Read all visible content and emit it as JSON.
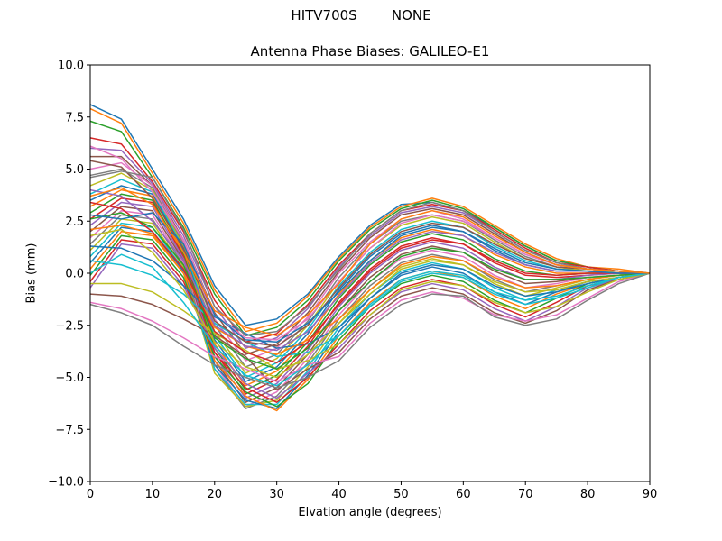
{
  "figure": {
    "suptitle": "HITV700S        NONE"
  },
  "chart_data": {
    "type": "line",
    "title": "Antenna Phase Biases: GALILEO-E1",
    "xlabel": "Elvation angle (degrees)",
    "ylabel": "Bias (mm)",
    "xlim": [
      0,
      90
    ],
    "ylim": [
      -10,
      10
    ],
    "xticks": [
      0,
      10,
      20,
      30,
      40,
      50,
      60,
      70,
      80,
      90
    ],
    "yticks": [
      -10.0,
      -7.5,
      -5.0,
      -2.5,
      0.0,
      2.5,
      5.0,
      7.5,
      10.0
    ],
    "ytick_labels": [
      "−10.0",
      "−7.5",
      "−5.0",
      "−2.5",
      "0.0",
      "2.5",
      "5.0",
      "7.5",
      "10.0"
    ],
    "grid": false,
    "legend": "none",
    "x": [
      0,
      5,
      10,
      15,
      20,
      25,
      30,
      35,
      40,
      45,
      50,
      55,
      60,
      65,
      70,
      75,
      80,
      85,
      90
    ],
    "colors": [
      "#1f77b4",
      "#ff7f0e",
      "#2ca02c",
      "#d62728",
      "#9467bd",
      "#8c564b",
      "#e377c2",
      "#7f7f7f",
      "#bcbd22",
      "#17becf"
    ],
    "series": [
      {
        "values": [
          8.1,
          7.4,
          5.0,
          2.6,
          -0.6,
          -2.5,
          -2.2,
          -1.0,
          0.8,
          2.3,
          3.3,
          3.4,
          3.0,
          2.2,
          1.3,
          0.6,
          0.3,
          0.1,
          0.0
        ]
      },
      {
        "values": [
          7.9,
          7.2,
          4.8,
          2.4,
          -0.8,
          -2.8,
          -2.4,
          -1.1,
          0.7,
          2.2,
          3.2,
          3.6,
          3.2,
          2.3,
          1.4,
          0.7,
          0.3,
          0.2,
          0.0
        ]
      },
      {
        "values": [
          7.3,
          6.8,
          4.6,
          2.2,
          -1.0,
          -3.0,
          -2.6,
          -1.3,
          0.6,
          2.1,
          3.1,
          3.5,
          3.1,
          2.2,
          1.3,
          0.6,
          0.3,
          0.1,
          0.0
        ]
      },
      {
        "values": [
          6.5,
          6.2,
          4.4,
          2.0,
          -1.3,
          -3.3,
          -2.9,
          -1.5,
          0.4,
          1.9,
          3.0,
          3.3,
          3.0,
          2.1,
          1.2,
          0.5,
          0.3,
          0.1,
          0.0
        ]
      },
      {
        "values": [
          6.0,
          5.9,
          4.3,
          1.8,
          -1.6,
          -3.6,
          -3.1,
          -1.7,
          0.3,
          1.8,
          2.9,
          3.2,
          2.9,
          2.0,
          1.1,
          0.5,
          0.2,
          0.1,
          0.0
        ]
      },
      {
        "values": [
          5.6,
          5.6,
          4.2,
          1.6,
          -1.9,
          -3.9,
          -3.4,
          -1.9,
          0.1,
          1.7,
          2.8,
          3.1,
          2.8,
          1.9,
          1.0,
          0.4,
          0.2,
          0.1,
          0.0
        ]
      },
      {
        "values": [
          5.0,
          5.3,
          4.2,
          1.5,
          -2.2,
          -4.2,
          -3.6,
          -2.1,
          0.0,
          1.5,
          2.6,
          3.0,
          2.6,
          1.7,
          0.9,
          0.4,
          0.2,
          0.1,
          0.0
        ]
      },
      {
        "values": [
          4.7,
          5.0,
          4.1,
          1.4,
          -2.5,
          -4.5,
          -3.9,
          -2.3,
          -0.2,
          1.4,
          2.5,
          2.8,
          2.5,
          1.6,
          0.8,
          0.3,
          0.2,
          0.1,
          0.0
        ]
      },
      {
        "values": [
          4.2,
          4.8,
          4.0,
          1.3,
          -2.8,
          -4.8,
          -4.1,
          -2.5,
          -0.4,
          1.2,
          2.3,
          2.7,
          2.4,
          1.5,
          0.7,
          0.3,
          0.1,
          0.1,
          0.0
        ]
      },
      {
        "values": [
          3.8,
          4.5,
          3.9,
          1.2,
          -3.0,
          -5.0,
          -4.3,
          -2.7,
          -0.6,
          1.0,
          2.1,
          2.5,
          2.2,
          1.3,
          0.6,
          0.2,
          0.1,
          0.0,
          0.0
        ]
      },
      {
        "values": [
          3.5,
          4.2,
          3.8,
          1.1,
          -3.2,
          -5.2,
          -4.5,
          -2.9,
          -0.8,
          0.8,
          1.9,
          2.3,
          2.0,
          1.1,
          0.4,
          0.1,
          0.1,
          0.0,
          0.0
        ]
      },
      {
        "values": [
          3.2,
          4.0,
          3.7,
          1.0,
          -3.4,
          -5.4,
          -4.7,
          -3.1,
          -1.0,
          0.6,
          1.7,
          2.1,
          1.8,
          0.9,
          0.3,
          0.0,
          0.0,
          0.0,
          0.0
        ]
      },
      {
        "values": [
          2.9,
          3.8,
          3.5,
          0.9,
          -3.6,
          -5.6,
          -4.9,
          -3.3,
          -1.2,
          0.4,
          1.5,
          1.9,
          1.6,
          0.7,
          0.1,
          -0.1,
          0.0,
          0.0,
          0.0
        ]
      },
      {
        "values": [
          2.6,
          3.6,
          3.4,
          0.8,
          -3.8,
          -5.8,
          -5.1,
          -3.5,
          -1.4,
          0.2,
          1.3,
          1.7,
          1.4,
          0.5,
          -0.1,
          -0.2,
          -0.1,
          0.0,
          0.0
        ]
      },
      {
        "values": [
          2.3,
          3.4,
          3.2,
          0.7,
          -4.0,
          -6.0,
          -5.3,
          -3.7,
          -1.6,
          0.0,
          1.1,
          1.5,
          1.2,
          0.3,
          -0.3,
          -0.3,
          -0.1,
          0.0,
          0.0
        ]
      },
      {
        "values": [
          2.0,
          3.2,
          3.0,
          0.6,
          -4.2,
          -6.2,
          -5.5,
          -3.9,
          -1.8,
          -0.2,
          0.9,
          1.3,
          1.0,
          0.1,
          -0.5,
          -0.4,
          -0.2,
          -0.1,
          0.0
        ]
      },
      {
        "values": [
          1.7,
          3.0,
          2.8,
          0.5,
          -4.4,
          -6.4,
          -5.7,
          -4.1,
          -2.0,
          -0.4,
          0.7,
          1.1,
          0.8,
          -0.1,
          -0.7,
          -0.5,
          -0.2,
          -0.1,
          0.0
        ]
      },
      {
        "values": [
          1.4,
          2.8,
          2.6,
          0.4,
          -4.6,
          -6.5,
          -5.9,
          -4.3,
          -2.2,
          -0.6,
          0.5,
          0.9,
          0.6,
          -0.3,
          -0.9,
          -0.6,
          -0.3,
          -0.1,
          0.0
        ]
      },
      {
        "values": [
          1.1,
          2.6,
          2.4,
          0.3,
          -4.8,
          -6.4,
          -6.1,
          -4.5,
          -2.4,
          -0.8,
          0.3,
          0.7,
          0.4,
          -0.5,
          -1.1,
          -0.7,
          -0.3,
          -0.1,
          0.0
        ]
      },
      {
        "values": [
          0.8,
          2.4,
          2.2,
          0.2,
          -4.6,
          -6.3,
          -6.3,
          -4.7,
          -2.6,
          -1.0,
          0.1,
          0.5,
          0.2,
          -0.7,
          -1.3,
          -0.8,
          -0.4,
          -0.2,
          0.0
        ]
      },
      {
        "values": [
          0.5,
          2.2,
          2.0,
          0.1,
          -4.4,
          -6.1,
          -6.5,
          -4.9,
          -2.8,
          -1.2,
          -0.1,
          0.3,
          0.0,
          -0.9,
          -1.5,
          -0.9,
          -0.4,
          -0.2,
          0.0
        ]
      },
      {
        "values": [
          0.2,
          2.0,
          1.8,
          0.0,
          -4.2,
          -5.9,
          -6.6,
          -5.1,
          -3.0,
          -1.4,
          -0.3,
          0.1,
          -0.2,
          -1.1,
          -1.7,
          -1.0,
          -0.5,
          -0.2,
          0.0
        ]
      },
      {
        "values": [
          -0.1,
          1.8,
          1.6,
          -0.2,
          -4.0,
          -5.7,
          -6.4,
          -5.3,
          -3.2,
          -1.6,
          -0.5,
          -0.1,
          -0.4,
          -1.3,
          -1.9,
          -1.2,
          -0.5,
          -0.2,
          0.0
        ]
      },
      {
        "values": [
          -0.4,
          1.6,
          1.4,
          -0.4,
          -3.8,
          -5.5,
          -6.2,
          -5.0,
          -3.4,
          -1.8,
          -0.7,
          -0.3,
          -0.6,
          -1.5,
          -2.1,
          -1.4,
          -0.6,
          -0.3,
          0.0
        ]
      },
      {
        "values": [
          -0.7,
          1.4,
          1.2,
          -0.6,
          -3.6,
          -5.3,
          -6.0,
          -4.8,
          -3.6,
          -2.0,
          -0.9,
          -0.5,
          -0.8,
          -1.7,
          -2.3,
          -1.6,
          -0.7,
          -0.3,
          0.0
        ]
      },
      {
        "values": [
          -1.0,
          -1.1,
          -1.5,
          -2.2,
          -3.0,
          -4.0,
          -5.6,
          -4.6,
          -3.8,
          -2.2,
          -1.1,
          -0.7,
          -1.0,
          -1.9,
          -2.4,
          -1.8,
          -0.8,
          -0.3,
          0.0
        ]
      },
      {
        "values": [
          -1.4,
          -1.7,
          -2.3,
          -3.1,
          -4.0,
          -4.6,
          -5.2,
          -4.4,
          -4.0,
          -2.4,
          -1.3,
          -0.9,
          -1.2,
          -2.0,
          -2.3,
          -2.0,
          -1.2,
          -0.4,
          0.0
        ]
      },
      {
        "values": [
          -1.5,
          -1.9,
          -2.5,
          -3.5,
          -4.4,
          -5.0,
          -5.5,
          -5.0,
          -4.2,
          -2.6,
          -1.5,
          -1.0,
          -1.1,
          -2.1,
          -2.5,
          -2.2,
          -1.3,
          -0.5,
          0.0
        ]
      },
      {
        "values": [
          -0.5,
          -0.5,
          -0.9,
          -1.8,
          -2.9,
          -3.7,
          -4.6,
          -4.2,
          -3.4,
          -2.0,
          -0.8,
          -0.4,
          -0.6,
          -1.4,
          -1.9,
          -1.6,
          -0.9,
          -0.3,
          0.0
        ]
      },
      {
        "values": [
          0.6,
          0.4,
          -0.1,
          -1.0,
          -2.4,
          -3.3,
          -4.0,
          -3.8,
          -3.0,
          -1.6,
          -0.4,
          0.0,
          -0.2,
          -1.0,
          -1.5,
          -1.2,
          -0.7,
          -0.2,
          0.0
        ]
      },
      {
        "values": [
          1.3,
          1.2,
          0.6,
          -0.6,
          -2.1,
          -2.9,
          -3.6,
          -3.4,
          -2.6,
          -1.2,
          0.0,
          0.4,
          0.2,
          -0.6,
          -1.1,
          -0.9,
          -0.5,
          -0.2,
          0.0
        ]
      },
      {
        "values": [
          2.1,
          2.3,
          1.9,
          0.0,
          -2.6,
          -3.5,
          -3.9,
          -3.2,
          -2.2,
          -0.8,
          0.4,
          0.8,
          0.6,
          -0.2,
          -0.7,
          -0.6,
          -0.3,
          -0.1,
          0.0
        ]
      },
      {
        "values": [
          2.6,
          2.9,
          2.2,
          0.4,
          -3.1,
          -4.1,
          -4.6,
          -3.6,
          -1.8,
          -0.4,
          0.8,
          1.2,
          1.0,
          0.2,
          -0.3,
          -0.3,
          -0.2,
          -0.1,
          0.0
        ]
      },
      {
        "values": [
          3.4,
          3.1,
          2.0,
          0.2,
          -2.8,
          -3.8,
          -4.3,
          -3.3,
          -1.5,
          0.1,
          1.2,
          1.6,
          1.4,
          0.6,
          0.0,
          -0.1,
          0.0,
          0.0,
          0.0
        ]
      },
      {
        "values": [
          4.0,
          3.7,
          2.5,
          0.6,
          -2.5,
          -3.5,
          -3.7,
          -2.8,
          -1.1,
          0.5,
          1.6,
          2.0,
          1.8,
          1.0,
          0.4,
          0.1,
          0.1,
          0.0,
          0.0
        ]
      },
      {
        "values": [
          5.4,
          5.1,
          3.6,
          1.2,
          -2.3,
          -3.3,
          -3.5,
          -2.5,
          -0.7,
          0.9,
          2.0,
          2.4,
          2.2,
          1.4,
          0.7,
          0.3,
          0.2,
          0.1,
          0.0
        ]
      },
      {
        "values": [
          6.1,
          5.5,
          3.9,
          1.6,
          -2.0,
          -3.1,
          -3.2,
          -2.2,
          -0.4,
          1.2,
          2.4,
          2.8,
          2.5,
          1.7,
          0.9,
          0.4,
          0.2,
          0.1,
          0.0
        ]
      },
      {
        "values": [
          4.6,
          4.9,
          4.6,
          2.1,
          -1.6,
          -3.0,
          -2.8,
          -1.6,
          0.2,
          1.9,
          3.0,
          3.4,
          3.0,
          2.0,
          1.1,
          0.5,
          0.2,
          0.1,
          0.0
        ]
      },
      {
        "values": [
          1.8,
          2.1,
          1.0,
          -0.8,
          -3.3,
          -4.5,
          -5.0,
          -3.9,
          -2.4,
          -1.0,
          0.2,
          0.6,
          0.4,
          -0.4,
          -0.9,
          -0.8,
          -0.4,
          -0.2,
          0.0
        ]
      },
      {
        "values": [
          0.0,
          0.9,
          0.3,
          -1.4,
          -3.5,
          -4.9,
          -5.4,
          -4.4,
          -3.0,
          -1.5,
          -0.3,
          0.1,
          -0.1,
          -0.9,
          -1.3,
          -1.1,
          -0.6,
          -0.2,
          0.0
        ]
      },
      {
        "values": [
          2.8,
          2.6,
          2.9,
          1.4,
          -2.0,
          -3.2,
          -3.3,
          -2.4,
          -0.9,
          0.6,
          1.8,
          2.2,
          2.0,
          1.2,
          0.5,
          0.2,
          0.1,
          0.0,
          0.0
        ]
      },
      {
        "values": [
          3.7,
          4.1,
          3.3,
          1.0,
          -1.8,
          -2.6,
          -3.0,
          -2.0,
          -0.5,
          1.4,
          2.6,
          3.0,
          2.7,
          1.8,
          1.0,
          0.4,
          0.2,
          0.1,
          0.0
        ]
      }
    ]
  }
}
